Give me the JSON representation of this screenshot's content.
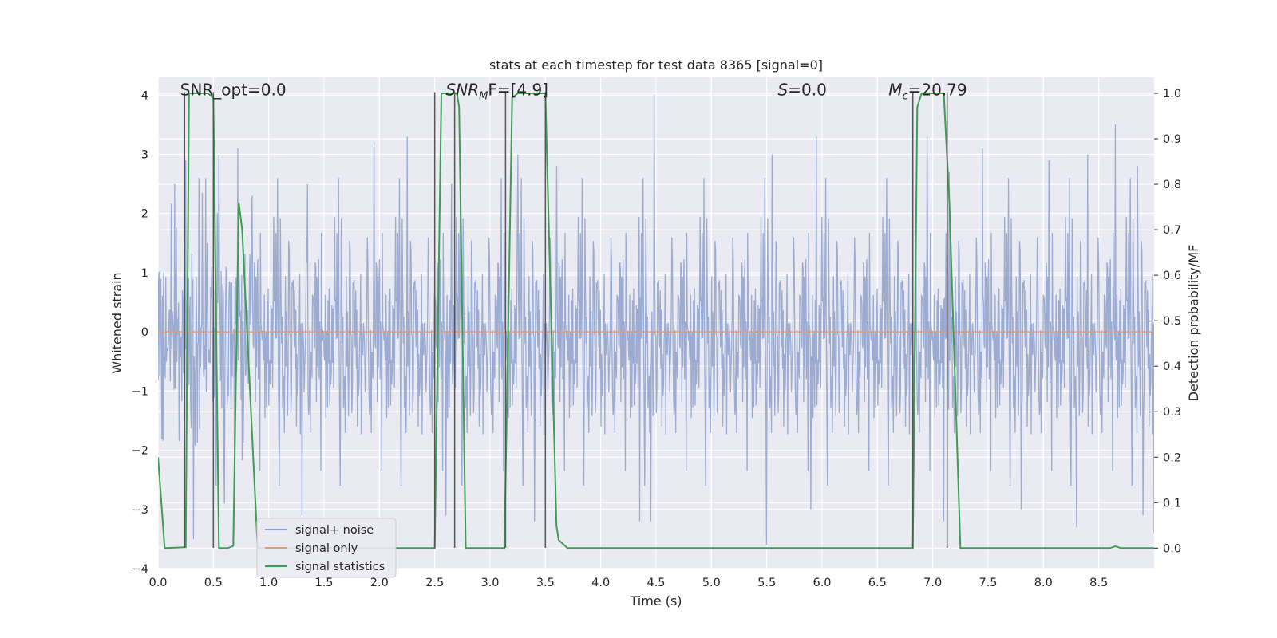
{
  "chart_data": {
    "type": "line",
    "title": "stats at each timestep for test data 8365 [signal=0]",
    "xlabel": "Time (s)",
    "ylabel": "Whitened strain",
    "ylabel_right": "Detection probability/MF",
    "xlim": [
      0,
      9.0
    ],
    "ylim": [
      -4.0,
      4.3
    ],
    "ylim_right": [
      -0.045,
      1.035
    ],
    "grid": true,
    "legend_position": "lower-left",
    "x_ticks": [
      "0.0",
      "0.5",
      "1.0",
      "1.5",
      "2.0",
      "2.5",
      "3.0",
      "3.5",
      "4.0",
      "4.5",
      "5.0",
      "5.5",
      "6.0",
      "6.5",
      "7.0",
      "7.5",
      "8.0",
      "8.5"
    ],
    "y_ticks_left": [
      "−4",
      "−3",
      "−2",
      "−1",
      "0",
      "1",
      "2",
      "3",
      "4"
    ],
    "y_ticks_right": [
      "0.0",
      "0.1",
      "0.2",
      "0.3",
      "0.4",
      "0.5",
      "0.6",
      "0.7",
      "0.8",
      "0.9",
      "1.0"
    ],
    "annotations": [
      {
        "text": "SNR_opt=0.0"
      },
      {
        "text": "SNR_MF=[4.9]",
        "base": "SNR",
        "sub": "M",
        "rest": "F=[4.9]"
      },
      {
        "text": "S=0.0",
        "base": "S",
        "rest": "=0.0"
      },
      {
        "text": "M_c=20.79",
        "base": "M",
        "sub": "c",
        "rest": "=20.79"
      }
    ],
    "series": [
      {
        "name": "signal+ noise",
        "color": "#8da0cb",
        "axis": "left",
        "x_range": [
          0,
          9.0
        ],
        "samples": 1800,
        "envelope": [
          -1.8,
          1.8
        ],
        "peaks": [
          {
            "x": 0.15,
            "y": 2.5
          },
          {
            "x": 0.25,
            "y": 2.9
          },
          {
            "x": 0.37,
            "y": 2.6
          },
          {
            "x": 0.55,
            "y": 3.0
          },
          {
            "x": 0.72,
            "y": 3.1
          },
          {
            "x": 0.85,
            "y": 2.3
          },
          {
            "x": 1.35,
            "y": 2.5
          },
          {
            "x": 1.95,
            "y": 3.2
          },
          {
            "x": 2.25,
            "y": 3.3
          },
          {
            "x": 2.65,
            "y": 2.5
          },
          {
            "x": 3.1,
            "y": 2.6
          },
          {
            "x": 3.25,
            "y": 3.0
          },
          {
            "x": 3.6,
            "y": 2.8
          },
          {
            "x": 4.48,
            "y": 4.0
          },
          {
            "x": 5.55,
            "y": 3.0
          },
          {
            "x": 5.95,
            "y": 3.3
          },
          {
            "x": 6.95,
            "y": 3.3
          },
          {
            "x": 7.15,
            "y": 2.7
          },
          {
            "x": 7.45,
            "y": 3.1
          },
          {
            "x": 8.05,
            "y": 2.9
          },
          {
            "x": 8.4,
            "y": 3.0
          },
          {
            "x": 8.65,
            "y": 3.5
          },
          {
            "x": 8.85,
            "y": 2.8
          }
        ],
        "troughs": [
          {
            "x": 0.32,
            "y": -3.5
          },
          {
            "x": 0.6,
            "y": -2.9
          },
          {
            "x": 1.3,
            "y": -3.1
          },
          {
            "x": 2.6,
            "y": -3.1
          },
          {
            "x": 3.4,
            "y": -3.2
          },
          {
            "x": 4.35,
            "y": -3.2
          },
          {
            "x": 4.45,
            "y": -3.2
          },
          {
            "x": 5.5,
            "y": -3.6
          },
          {
            "x": 5.9,
            "y": -3.0
          },
          {
            "x": 6.95,
            "y": -3.2
          },
          {
            "x": 7.1,
            "y": -3.2
          },
          {
            "x": 7.8,
            "y": -3.0
          },
          {
            "x": 8.3,
            "y": -3.3
          },
          {
            "x": 8.9,
            "y": -3.1
          },
          {
            "x": 9.0,
            "y": -3.4
          }
        ]
      },
      {
        "name": "signal only",
        "color": "#e39a7a",
        "axis": "left",
        "x": [
          0,
          9.0
        ],
        "y": [
          0,
          0
        ]
      },
      {
        "name": "signal statistics",
        "color": "#3f9c52",
        "axis": "right",
        "x": [
          0,
          0.06,
          0.25,
          0.28,
          0.45,
          0.5,
          0.55,
          0.63,
          0.68,
          0.73,
          0.76,
          0.9,
          2.5,
          2.56,
          2.7,
          2.72,
          2.78,
          3.13,
          3.2,
          3.25,
          3.5,
          3.6,
          3.62,
          3.7,
          5.2,
          5.5,
          6.82,
          6.86,
          6.9,
          6.95,
          7.1,
          7.15,
          7.25,
          8.6,
          8.65,
          8.7,
          9.0
        ],
        "y": [
          0.2,
          0.0,
          0.002,
          1.0,
          1.0,
          0.99,
          0.0,
          0.0,
          0.005,
          0.76,
          0.7,
          0.0,
          0.0,
          1.0,
          1.0,
          0.97,
          0.0,
          0.0,
          0.99,
          1.0,
          1.0,
          0.05,
          0.018,
          0.0,
          0.0,
          0.0,
          0.0,
          0.97,
          1.0,
          1.0,
          1.0,
          0.76,
          0.0,
          0.0,
          0.004,
          0.0,
          0.0
        ]
      }
    ],
    "vertical_markers": [
      {
        "x": 0.24,
        "y": [
          -3.65,
          4.05
        ]
      },
      {
        "x": 0.5,
        "y": [
          -3.65,
          4.05
        ]
      },
      {
        "x": 2.5,
        "y": [
          -3.65,
          4.05
        ]
      },
      {
        "x": 2.68,
        "y": [
          -3.65,
          4.05
        ]
      },
      {
        "x": 3.14,
        "y": [
          -3.65,
          4.05
        ]
      },
      {
        "x": 3.5,
        "y": [
          -3.65,
          4.05
        ]
      },
      {
        "x": 6.82,
        "y": [
          -3.65,
          4.05
        ]
      },
      {
        "x": 7.13,
        "y": [
          -3.65,
          4.05
        ]
      }
    ]
  }
}
